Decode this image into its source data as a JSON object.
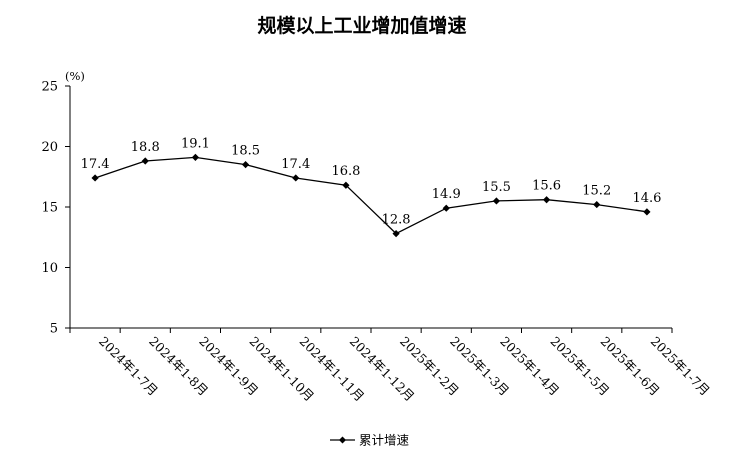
{
  "chart_data": {
    "type": "line",
    "title": "规模以上工业增加值增速",
    "unit_label": "(%)",
    "categories": [
      "2024年1-7月",
      "2024年1-8月",
      "2024年1-9月",
      "2024年1-10月",
      "2024年1-11月",
      "2024年1-12月",
      "2025年1-2月",
      "2025年1-3月",
      "2025年1-4月",
      "2025年1-5月",
      "2025年1-6月",
      "2025年1-7月"
    ],
    "series": [
      {
        "name": "累计增速",
        "values": [
          17.4,
          18.8,
          19.1,
          18.5,
          17.4,
          16.8,
          12.8,
          14.9,
          15.5,
          15.6,
          15.2,
          14.6
        ]
      }
    ],
    "ylim": [
      5,
      25
    ],
    "yticks": [
      5,
      10,
      15,
      20,
      25
    ],
    "grid": false,
    "legend_position": "bottom",
    "marker": "diamond",
    "line_color": "#000000"
  }
}
